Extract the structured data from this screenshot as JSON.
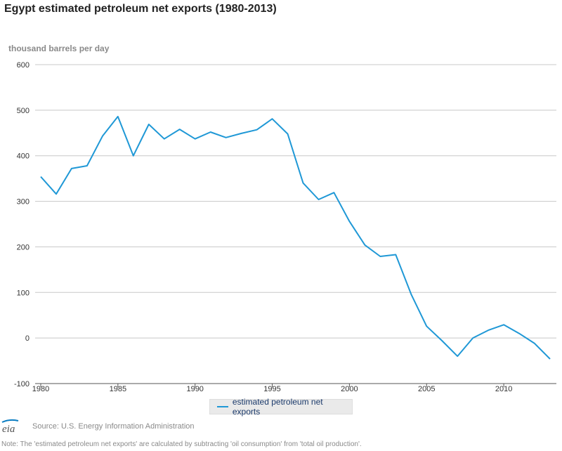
{
  "chart_data": {
    "type": "line",
    "title": "Egypt estimated petroleum net exports (1980-2013)",
    "ylabel": "thousand barrels per day",
    "xlabel": "",
    "ylim": [
      -100,
      600
    ],
    "yticks": [
      "600",
      "500",
      "400",
      "300",
      "200",
      "100",
      "0",
      "-100"
    ],
    "xticks": [
      "1980",
      "1985",
      "1990",
      "1995",
      "2000",
      "2005",
      "2010"
    ],
    "xlim": [
      1980,
      2013
    ],
    "grid": true,
    "legend_position": "bottom",
    "series": [
      {
        "name": "estimated petroleum net exports",
        "color": "#1f98d6",
        "x": [
          1980,
          1981,
          1982,
          1983,
          1984,
          1985,
          1986,
          1987,
          1988,
          1989,
          1990,
          1991,
          1992,
          1993,
          1994,
          1995,
          1996,
          1997,
          1998,
          1999,
          2000,
          2001,
          2002,
          2003,
          2004,
          2005,
          2006,
          2007,
          2008,
          2009,
          2010,
          2011,
          2012,
          2013
        ],
        "values": [
          354,
          316,
          372,
          378,
          443,
          486,
          400,
          469,
          437,
          458,
          437,
          452,
          440,
          449,
          457,
          481,
          448,
          340,
          304,
          319,
          256,
          204,
          179,
          183,
          96,
          26,
          -6,
          -40,
          0,
          17,
          29,
          10,
          -12,
          -46
        ]
      }
    ]
  },
  "legend": {
    "label": "estimated petroleum net exports"
  },
  "source": {
    "logo_text": "eia",
    "text": "Source: U.S. Energy Information Administration"
  },
  "note": "Note: The 'estimated petroleum net exports' are calculated by subtracting 'oil consumption' from 'total oil production'."
}
